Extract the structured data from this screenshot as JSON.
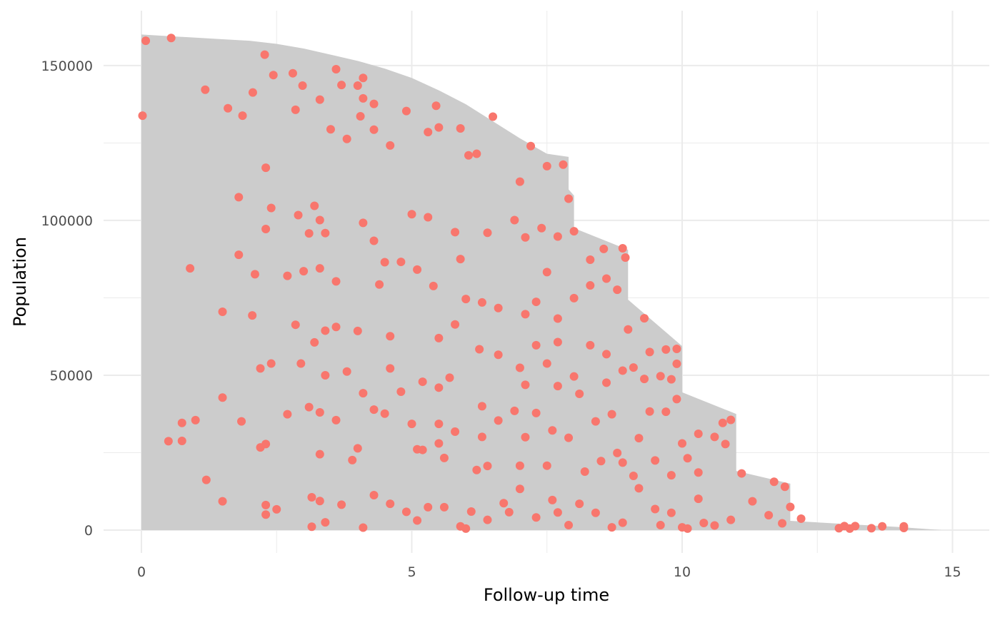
{
  "chart_data": {
    "type": "population-time",
    "x_label": "Follow-up time",
    "y_label": "Population",
    "xlim": [
      -0.7,
      15.68
    ],
    "ylim": [
      -7370,
      167700
    ],
    "xticks": [
      0,
      5,
      10,
      15
    ],
    "yticks": [
      0,
      50000,
      100000,
      150000
    ],
    "x_minor_grid": [
      2.5,
      7.5,
      12.5
    ],
    "y_minor_grid": [
      25000,
      75000,
      125000
    ],
    "grid": true,
    "series": [
      {
        "type": "area",
        "color": "#cccccc",
        "x": [
          0,
          0.5,
          1,
          1.5,
          2,
          2.5,
          3,
          3.5,
          4,
          4.5,
          5,
          5.5,
          6,
          6.5,
          7,
          7.5,
          7.9,
          7.9,
          8.0,
          8.0,
          9.0,
          9.0,
          10.0,
          10.0,
          11.0,
          11.0,
          12.0,
          12.0,
          13.0,
          14.0,
          14.8
        ],
        "values": [
          160000,
          159500,
          159000,
          158500,
          158000,
          157000,
          155500,
          153500,
          151500,
          149000,
          146000,
          142000,
          137500,
          132000,
          126500,
          121500,
          120500,
          110000,
          108000,
          97500,
          90500,
          74400,
          59400,
          44500,
          37500,
          19100,
          15000,
          3000,
          2000,
          1000,
          0
        ]
      },
      {
        "type": "scatter",
        "color": "#f8766d",
        "x": [
          0.02,
          0.08,
          0.55,
          1.18,
          1.6,
          1.87,
          2.06,
          2.28,
          2.44,
          2.8,
          2.98,
          2.85,
          3.3,
          3.6,
          3.7,
          4.0,
          4.1,
          4.1,
          4.3,
          4.05,
          3.5,
          3.8,
          4.3,
          4.6,
          4.9,
          5.3,
          5.45,
          5.5,
          5.9,
          6.05,
          6.2,
          6.5,
          7.0,
          7.2,
          7.5,
          7.8,
          7.9,
          2.3,
          1.8,
          2.4,
          2.3,
          2.9,
          3.1,
          3.2,
          3.3,
          3.4,
          4.1,
          4.3,
          5.0,
          5.3,
          5.8,
          6.4,
          6.9,
          7.1,
          7.4,
          7.7,
          8.0,
          8.3,
          8.55,
          8.9,
          8.95,
          1.8,
          0.9,
          2.1,
          2.7,
          3.0,
          3.3,
          3.6,
          4.4,
          4.5,
          4.8,
          5.1,
          5.4,
          5.9,
          6.0,
          6.3,
          7.3,
          7.5,
          7.7,
          8.0,
          8.3,
          8.6,
          8.8,
          9.0,
          9.3,
          1.5,
          2.05,
          2.85,
          3.2,
          3.4,
          3.6,
          4.0,
          4.6,
          5.5,
          5.8,
          6.6,
          7.1,
          7.3,
          7.7,
          8.3,
          8.6,
          9.1,
          9.4,
          9.7,
          9.9,
          2.2,
          2.4,
          2.95,
          3.4,
          3.8,
          4.6,
          4.8,
          5.2,
          5.5,
          5.7,
          6.25,
          6.6,
          7.0,
          7.1,
          7.5,
          7.7,
          8.0,
          8.6,
          8.9,
          9.3,
          9.6,
          9.8,
          9.9,
          1.5,
          0.5,
          0.75,
          1.0,
          1.85,
          0.75,
          2.2,
          2.3,
          2.7,
          3.1,
          3.3,
          3.6,
          4.1,
          4.3,
          4.5,
          5.0,
          5.1,
          5.5,
          5.8,
          6.3,
          6.6,
          6.9,
          7.3,
          7.6,
          8.1,
          8.4,
          8.7,
          9.2,
          9.4,
          9.7,
          9.9,
          10.0,
          10.3,
          10.6,
          10.9,
          10.75,
          1.2,
          1.5,
          2.3,
          2.3,
          2.5,
          3.15,
          3.3,
          3.15,
          3.4,
          3.7,
          4.1,
          4.3,
          4.6,
          4.9,
          5.1,
          5.3,
          5.6,
          5.9,
          6.0,
          6.1,
          6.4,
          6.7,
          6.8,
          7.0,
          7.3,
          7.6,
          7.7,
          7.9,
          8.1,
          8.4,
          8.7,
          8.9,
          9.2,
          9.5,
          9.6,
          9.8,
          10.0,
          10.1,
          10.3,
          10.4,
          10.6,
          10.9,
          11.1,
          11.3,
          11.7,
          11.6,
          11.9,
          11.85,
          12.0,
          12.2,
          12.9,
          13.0,
          13.2,
          13.1,
          13.5,
          13.7,
          14.1,
          14.1,
          5.6,
          6.4,
          7.0,
          7.5,
          8.2,
          8.5,
          8.9,
          9.5,
          9.8,
          10.3,
          6.2,
          5.2,
          4.0,
          3.9,
          3.3,
          5.5,
          6.3,
          7.1,
          7.9,
          8.8,
          9.1,
          10.1,
          10.8
        ],
        "values": [
          133800,
          158000,
          158900,
          142200,
          136200,
          133800,
          141300,
          153500,
          146900,
          147500,
          143500,
          135700,
          139000,
          148800,
          143700,
          143500,
          146000,
          139400,
          137600,
          133600,
          129400,
          126300,
          129300,
          124200,
          135300,
          128500,
          137000,
          130000,
          129700,
          121000,
          121500,
          133500,
          112500,
          124000,
          117500,
          118000,
          107000,
          117000,
          107500,
          104000,
          97200,
          101700,
          95800,
          104700,
          100100,
          95900,
          99200,
          93400,
          102000,
          101000,
          96200,
          96000,
          100100,
          94500,
          97500,
          94800,
          96500,
          87300,
          90800,
          91000,
          88000,
          88900,
          84500,
          82600,
          82100,
          83600,
          84500,
          80300,
          79300,
          86500,
          86600,
          84100,
          78800,
          87500,
          74600,
          73500,
          73700,
          83300,
          68300,
          74900,
          79000,
          81200,
          77600,
          64800,
          68400,
          70500,
          69300,
          66300,
          60600,
          64400,
          65600,
          64300,
          62600,
          62000,
          66400,
          71700,
          69700,
          59700,
          60700,
          59700,
          56800,
          52500,
          57500,
          58300,
          58500,
          52200,
          53800,
          53800,
          50000,
          51200,
          52200,
          44700,
          47900,
          46000,
          49200,
          58400,
          56600,
          52400,
          46900,
          53800,
          46500,
          49600,
          47600,
          51500,
          48800,
          49700,
          48700,
          53700,
          42800,
          28700,
          34600,
          35500,
          35100,
          28800,
          26700,
          27800,
          37400,
          39700,
          38000,
          35500,
          44200,
          38900,
          37600,
          34300,
          26100,
          34300,
          31800,
          40000,
          35400,
          38500,
          37800,
          32200,
          44000,
          35100,
          37400,
          29700,
          38300,
          38200,
          42300,
          28000,
          31100,
          30100,
          35600,
          34600,
          16200,
          9300,
          8100,
          5000,
          6700,
          10600,
          9400,
          1100,
          2500,
          8200,
          800,
          11300,
          8500,
          5900,
          3100,
          7400,
          7400,
          1200,
          500,
          6000,
          3300,
          8700,
          5800,
          13300,
          4100,
          9700,
          5700,
          1600,
          8500,
          5600,
          900,
          2400,
          13500,
          6800,
          1600,
          5600,
          900,
          500,
          10100,
          2300,
          1500,
          3300,
          18300,
          9300,
          15600,
          4800,
          14000,
          2200,
          7500,
          3700,
          600,
          1300,
          1300,
          500,
          600,
          1200,
          1200,
          700,
          23300,
          20700,
          20800,
          20800,
          18900,
          22300,
          21800,
          22500,
          17700,
          18600,
          19400,
          25900,
          26400,
          22600,
          24500,
          28000,
          30100,
          30000,
          29800,
          24900,
          17500,
          23200,
          27800
        ]
      }
    ]
  }
}
